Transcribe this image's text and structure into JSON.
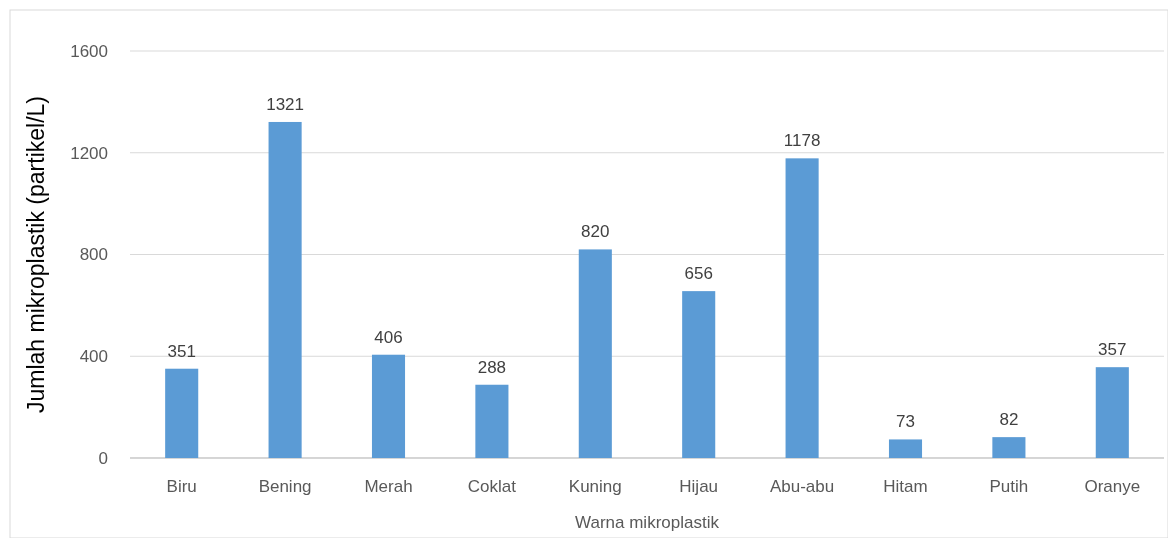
{
  "chart_data": {
    "type": "bar",
    "xlabel": "Warna mikroplastik",
    "ylabel": "Jumlah mikroplastik (partikel/L)",
    "categories": [
      "Biru",
      "Bening",
      "Merah",
      "Coklat",
      "Kuning",
      "Hijau",
      "Abu-abu",
      "Hitam",
      "Putih",
      "Oranye"
    ],
    "values": [
      351,
      1321,
      406,
      288,
      820,
      656,
      1178,
      73,
      82,
      357
    ],
    "color": "#5b9bd5",
    "ylim": [
      0,
      1600
    ],
    "yticks": [
      0,
      400,
      800,
      1200,
      1600
    ],
    "grid": "y",
    "data_labels": true
  }
}
